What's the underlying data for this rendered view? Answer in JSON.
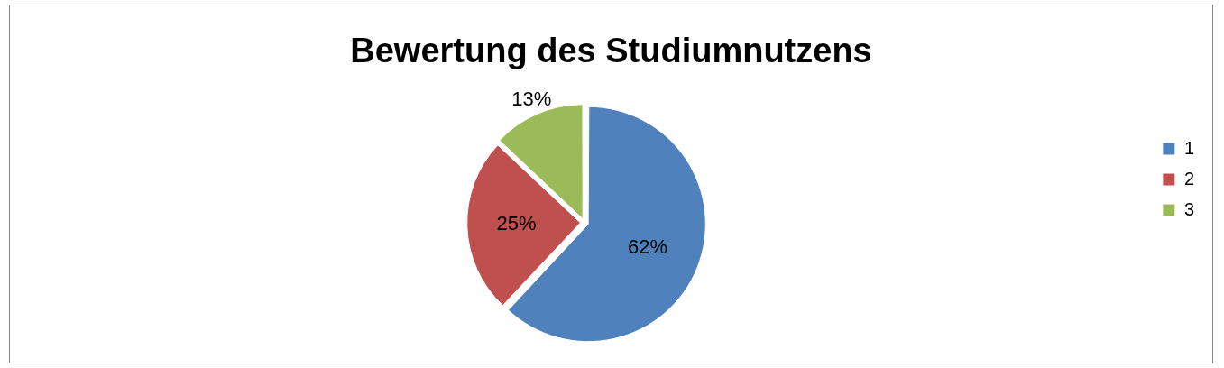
{
  "chart_data": {
    "type": "pie",
    "title": "Bewertung des Studiumnutzens",
    "categories": [
      "1",
      "2",
      "3"
    ],
    "values": [
      62,
      25,
      13
    ],
    "value_labels": [
      "62%",
      "25%",
      "13%"
    ],
    "colors": [
      "#4f81bd",
      "#c0504d",
      "#9bbb59"
    ],
    "legend": "right"
  }
}
